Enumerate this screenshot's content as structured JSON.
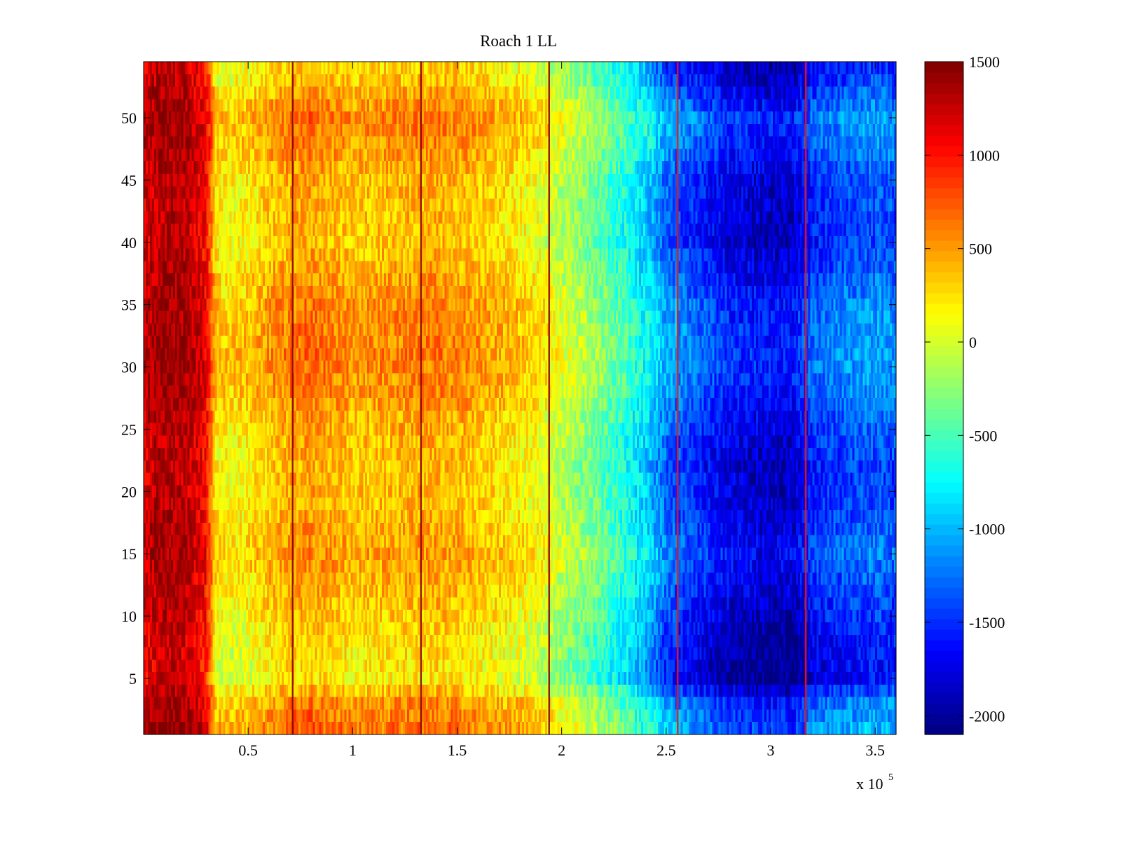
{
  "chart_data": {
    "type": "heatmap",
    "title": "Roach 1 LL",
    "xlabel": "",
    "ylabel": "",
    "x_exponent_label": "x 10",
    "x_exponent": "5",
    "xlim": [
      0,
      3.6
    ],
    "ylim": [
      0.5,
      54.5
    ],
    "xticks": [
      0.5,
      1,
      1.5,
      2,
      2.5,
      3,
      3.5
    ],
    "xtick_labels": [
      "0.5",
      "1",
      "1.5",
      "2",
      "2.5",
      "3",
      "3.5"
    ],
    "yticks": [
      5,
      10,
      15,
      20,
      25,
      30,
      35,
      40,
      45,
      50
    ],
    "ytick_labels": [
      "5",
      "10",
      "15",
      "20",
      "25",
      "30",
      "35",
      "40",
      "45",
      "50"
    ],
    "colormap": "jet",
    "clim": [
      -2100,
      1500
    ],
    "colorbar_ticks": [
      1500,
      1000,
      500,
      0,
      -500,
      -1000,
      -1500,
      -2000
    ],
    "colorbar_tick_labels": [
      "1500",
      "1000",
      "500",
      "0",
      "-500",
      "-1000",
      "-1500",
      "-2000"
    ],
    "rows": 54,
    "column_profile": {
      "x": [
        0,
        0.05,
        0.1,
        0.15,
        0.2,
        0.25,
        0.3,
        0.35,
        0.4,
        0.5,
        0.6,
        0.7,
        0.8,
        1.0,
        1.2,
        1.4,
        1.6,
        1.8,
        1.9,
        2.0,
        2.1,
        2.2,
        2.3,
        2.4,
        2.5,
        2.6,
        2.7,
        2.8,
        2.9,
        3.0,
        3.1,
        3.2,
        3.3,
        3.4,
        3.5,
        3.6
      ],
      "value": [
        1150,
        1250,
        1300,
        1300,
        1250,
        1150,
        1000,
        150,
        100,
        150,
        300,
        400,
        450,
        300,
        350,
        400,
        300,
        150,
        50,
        -150,
        -300,
        -500,
        -700,
        -950,
        -1350,
        -1500,
        -1650,
        -1800,
        -1850,
        -1900,
        -1900,
        -1600,
        -1500,
        -1450,
        -1400,
        -1450
      ]
    },
    "row_modulation": {
      "rows": [
        1,
        2,
        3,
        5,
        8,
        12,
        15,
        18,
        22,
        26,
        28,
        31,
        35,
        40,
        45,
        48,
        50,
        53,
        54
      ],
      "offset": [
        300,
        250,
        200,
        -150,
        -100,
        50,
        150,
        50,
        0,
        100,
        200,
        250,
        200,
        0,
        50,
        200,
        250,
        0,
        -50
      ]
    },
    "vertical_lines": [
      {
        "x": 0.713,
        "value": 1450
      },
      {
        "x": 1.327,
        "value": 1450
      },
      {
        "x": 1.94,
        "value": 1450
      },
      {
        "x": 2.555,
        "value": 1000
      },
      {
        "x": 3.168,
        "value": 1000
      }
    ]
  }
}
